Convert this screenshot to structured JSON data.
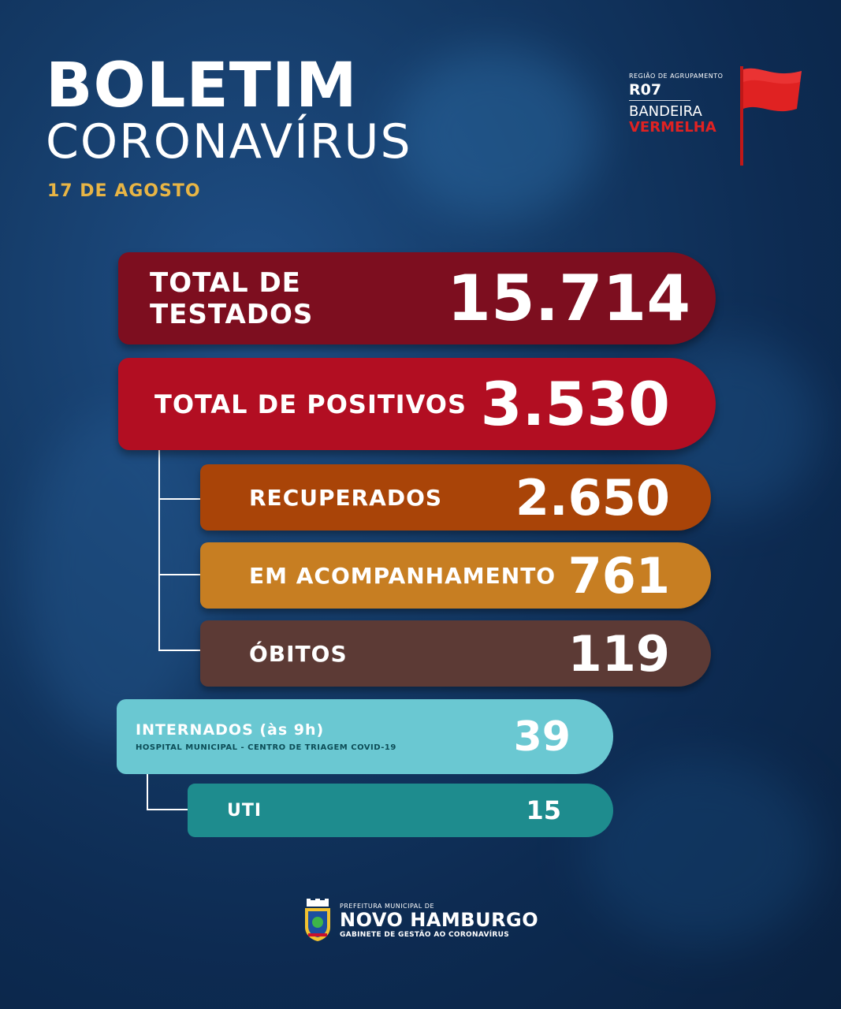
{
  "header": {
    "title_line1": "BOLETIM",
    "title_line2": "CORONAVÍRUS",
    "date": "17 DE AGOSTO"
  },
  "region": {
    "label": "REGIÃO DE AGRUPAMENTO",
    "code": "R07",
    "flag_line1": "BANDEIRA",
    "flag_line2": "VERMELHA",
    "flag_color": "#e02222",
    "icon": "red-flag-icon"
  },
  "stats": {
    "testados": {
      "label": "TOTAL DE TESTADOS",
      "value": "15.714",
      "color": "#7d0e1f"
    },
    "positivos": {
      "label": "TOTAL DE POSITIVOS",
      "value": "3.530",
      "color": "#b20e22"
    },
    "recuperados": {
      "label": "RECUPERADOS",
      "value": "2.650",
      "color": "#a94408"
    },
    "acompanhamento": {
      "label": "EM ACOMPANHAMENTO",
      "value": "761",
      "color": "#c77e22"
    },
    "obitos": {
      "label": "ÓBITOS",
      "value": "119",
      "color": "#5c3a35"
    },
    "internados": {
      "label": "INTERNADOS (às 9h)",
      "sublabel": "HOSPITAL MUNICIPAL - CENTRO DE TRIAGEM COVID-19",
      "value": "39",
      "color": "#6ac8d2"
    },
    "uti": {
      "label": "UTI",
      "value": "15",
      "color": "#1e8c8e"
    }
  },
  "footer": {
    "prefix": "PREFEITURA MUNICIPAL DE",
    "city": "NOVO HAMBURGO",
    "office": "GABINETE DE GESTÃO AO CORONAVÍRUS",
    "logo": "city-coat-of-arms-icon"
  }
}
